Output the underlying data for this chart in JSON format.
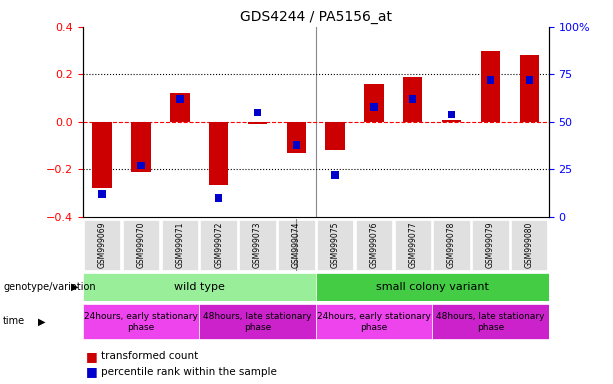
{
  "title": "GDS4244 / PA5156_at",
  "samples": [
    "GSM999069",
    "GSM999070",
    "GSM999071",
    "GSM999072",
    "GSM999073",
    "GSM999074",
    "GSM999075",
    "GSM999076",
    "GSM999077",
    "GSM999078",
    "GSM999079",
    "GSM999080"
  ],
  "red_values": [
    -0.28,
    -0.21,
    0.12,
    -0.265,
    -0.01,
    -0.13,
    -0.12,
    0.16,
    0.19,
    0.01,
    0.3,
    0.28
  ],
  "blue_values_pct": [
    12,
    27,
    62,
    10,
    55,
    38,
    22,
    58,
    62,
    54,
    72,
    72
  ],
  "ylim_left": [
    -0.4,
    0.4
  ],
  "ylim_right": [
    0,
    100
  ],
  "yticks_left": [
    -0.4,
    -0.2,
    0.0,
    0.2,
    0.4
  ],
  "yticks_right": [
    0,
    25,
    50,
    75,
    100
  ],
  "bar_color": "#cc0000",
  "square_color": "#0000cc",
  "bar_width": 0.5,
  "group1_label": "wild type",
  "group2_label": "small colony variant",
  "group1_color": "#99ee99",
  "group2_color": "#44cc44",
  "time1_label": "24hours, early stationary\nphase",
  "time2_label": "48hours, late stationary\nphase",
  "time_color1": "#ee44ee",
  "time_color2": "#cc22cc",
  "genotype_label": "genotype/variation",
  "time_label": "time",
  "legend1": "transformed count",
  "legend2": "percentile rank within the sample"
}
